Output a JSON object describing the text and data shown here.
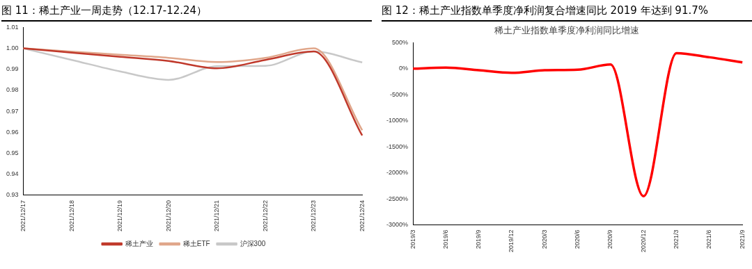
{
  "chart_data": [
    {
      "type": "line",
      "title": "图 11：稀土产业一周走势（12.17-12.24）",
      "categories": [
        "2021/12/17",
        "2021/12/18",
        "2021/12/19",
        "2021/12/20",
        "2021/12/21",
        "2021/12/22",
        "2021/12/23",
        "2021/12/24"
      ],
      "series": [
        {
          "name": "稀土产业",
          "color": "#c0392b",
          "values": [
            1.0,
            0.998,
            0.996,
            0.994,
            0.9905,
            0.9945,
            0.9985,
            0.9585
          ]
        },
        {
          "name": "稀土ETF",
          "color": "#e0a68a",
          "values": [
            1.0,
            0.9985,
            0.997,
            0.9955,
            0.9935,
            0.9955,
            1.0,
            0.961
          ]
        },
        {
          "name": "沪深300",
          "color": "#c8c8c8",
          "values": [
            1.0,
            0.9945,
            0.989,
            0.985,
            0.9915,
            0.9917,
            0.9985,
            0.9933
          ]
        }
      ],
      "ylim": [
        0.93,
        1.01
      ],
      "yticks": [
        {
          "value": 0.93,
          "label": "0.93"
        },
        {
          "value": 0.94,
          "label": "0.94"
        },
        {
          "value": 0.95,
          "label": "0.95"
        },
        {
          "value": 0.96,
          "label": "0.96"
        },
        {
          "value": 0.97,
          "label": "0.97"
        },
        {
          "value": 0.98,
          "label": "0.98"
        },
        {
          "value": 0.99,
          "label": "0.99"
        },
        {
          "value": 1.0,
          "label": "1.00"
        },
        {
          "value": 1.01,
          "label": "1.01"
        }
      ],
      "grid": false,
      "legend": "bottom",
      "marker": "none",
      "line_style": "solid"
    },
    {
      "type": "line",
      "title": "图 12：稀土产业指数单季度净利润复合增速同比 2019 年达到 91.7%",
      "subtitle": "稀土产业指数单季度净利润同比增速",
      "categories": [
        "2019/3",
        "2019/6",
        "2019/9",
        "2019/12",
        "2020/3",
        "2020/6",
        "2020/9",
        "2020/12",
        "2021/3",
        "2021/6",
        "2021/9"
      ],
      "series": [
        {
          "color": "#ff0000",
          "values": [
            0,
            20,
            -30,
            -80,
            -30,
            -20,
            80,
            -2450,
            300,
            220,
            120
          ]
        }
      ],
      "ylim": [
        -3000,
        500
      ],
      "yticks": [
        {
          "value": -3000,
          "label": "-3000%"
        },
        {
          "value": -2500,
          "label": "-2500%"
        },
        {
          "value": -2000,
          "label": "-2000%"
        },
        {
          "value": -1500,
          "label": "-1500%"
        },
        {
          "value": -1000,
          "label": "-1000%"
        },
        {
          "value": -500,
          "label": "-500%"
        },
        {
          "value": 0,
          "label": "0%"
        },
        {
          "value": 500,
          "label": "500%"
        }
      ],
      "grid": false,
      "legend": false,
      "marker": "none",
      "line_style": "solid"
    }
  ]
}
